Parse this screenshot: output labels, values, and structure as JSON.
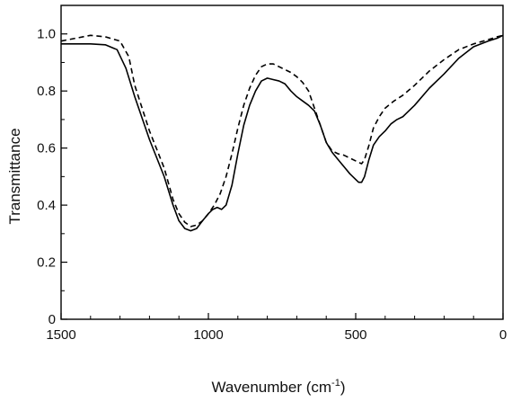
{
  "chart_data": {
    "type": "line",
    "title": "",
    "xlabel": "Wavenumber (cm",
    "xlabel_sup": "-1",
    "xlabel_tail": ")",
    "ylabel": "Transmittance",
    "xlim": [
      1500,
      0
    ],
    "ylim": [
      0,
      1.1
    ],
    "x_ticks": [
      1500,
      1000,
      500,
      0
    ],
    "y_ticks": [
      0,
      0.2,
      0.4,
      0.6,
      0.8,
      1.0
    ],
    "x_tick_labels": [
      "1500",
      "1000",
      "500",
      "0"
    ],
    "y_tick_labels": [
      "0",
      "0.2",
      "0.4",
      "0.6",
      "0.8",
      "1.0"
    ],
    "grid": false,
    "series": [
      {
        "style": "solid",
        "color": "#000000",
        "points": [
          [
            1500,
            0.965
          ],
          [
            1400,
            0.965
          ],
          [
            1350,
            0.962
          ],
          [
            1310,
            0.945
          ],
          [
            1280,
            0.88
          ],
          [
            1250,
            0.78
          ],
          [
            1200,
            0.63
          ],
          [
            1150,
            0.5
          ],
          [
            1120,
            0.4
          ],
          [
            1100,
            0.345
          ],
          [
            1080,
            0.318
          ],
          [
            1060,
            0.31
          ],
          [
            1040,
            0.318
          ],
          [
            1020,
            0.345
          ],
          [
            1000,
            0.37
          ],
          [
            985,
            0.385
          ],
          [
            970,
            0.392
          ],
          [
            955,
            0.385
          ],
          [
            940,
            0.4
          ],
          [
            920,
            0.47
          ],
          [
            900,
            0.58
          ],
          [
            880,
            0.68
          ],
          [
            860,
            0.75
          ],
          [
            840,
            0.8
          ],
          [
            820,
            0.835
          ],
          [
            800,
            0.845
          ],
          [
            780,
            0.84
          ],
          [
            760,
            0.835
          ],
          [
            740,
            0.825
          ],
          [
            720,
            0.8
          ],
          [
            700,
            0.78
          ],
          [
            680,
            0.765
          ],
          [
            660,
            0.75
          ],
          [
            640,
            0.73
          ],
          [
            620,
            0.68
          ],
          [
            600,
            0.62
          ],
          [
            580,
            0.585
          ],
          [
            560,
            0.56
          ],
          [
            540,
            0.535
          ],
          [
            520,
            0.51
          ],
          [
            500,
            0.49
          ],
          [
            490,
            0.48
          ],
          [
            480,
            0.48
          ],
          [
            470,
            0.5
          ],
          [
            455,
            0.56
          ],
          [
            440,
            0.61
          ],
          [
            420,
            0.64
          ],
          [
            400,
            0.66
          ],
          [
            380,
            0.685
          ],
          [
            360,
            0.7
          ],
          [
            340,
            0.71
          ],
          [
            300,
            0.75
          ],
          [
            250,
            0.81
          ],
          [
            200,
            0.86
          ],
          [
            150,
            0.915
          ],
          [
            100,
            0.955
          ],
          [
            50,
            0.975
          ],
          [
            20,
            0.985
          ],
          [
            0,
            0.995
          ]
        ]
      },
      {
        "style": "dashed",
        "color": "#000000",
        "points": [
          [
            1500,
            0.975
          ],
          [
            1450,
            0.985
          ],
          [
            1400,
            0.995
          ],
          [
            1350,
            0.99
          ],
          [
            1300,
            0.975
          ],
          [
            1270,
            0.92
          ],
          [
            1250,
            0.82
          ],
          [
            1200,
            0.66
          ],
          [
            1150,
            0.53
          ],
          [
            1120,
            0.42
          ],
          [
            1100,
            0.37
          ],
          [
            1080,
            0.34
          ],
          [
            1060,
            0.325
          ],
          [
            1040,
            0.33
          ],
          [
            1020,
            0.345
          ],
          [
            1000,
            0.37
          ],
          [
            980,
            0.4
          ],
          [
            960,
            0.44
          ],
          [
            940,
            0.5
          ],
          [
            920,
            0.58
          ],
          [
            900,
            0.67
          ],
          [
            880,
            0.75
          ],
          [
            860,
            0.81
          ],
          [
            840,
            0.855
          ],
          [
            820,
            0.885
          ],
          [
            800,
            0.895
          ],
          [
            780,
            0.895
          ],
          [
            760,
            0.885
          ],
          [
            740,
            0.875
          ],
          [
            720,
            0.865
          ],
          [
            700,
            0.85
          ],
          [
            680,
            0.83
          ],
          [
            660,
            0.8
          ],
          [
            640,
            0.74
          ],
          [
            620,
            0.68
          ],
          [
            600,
            0.62
          ],
          [
            580,
            0.59
          ],
          [
            560,
            0.58
          ],
          [
            540,
            0.575
          ],
          [
            520,
            0.565
          ],
          [
            500,
            0.555
          ],
          [
            490,
            0.55
          ],
          [
            480,
            0.545
          ],
          [
            470,
            0.56
          ],
          [
            455,
            0.61
          ],
          [
            440,
            0.67
          ],
          [
            420,
            0.71
          ],
          [
            400,
            0.74
          ],
          [
            370,
            0.765
          ],
          [
            340,
            0.785
          ],
          [
            300,
            0.82
          ],
          [
            250,
            0.87
          ],
          [
            200,
            0.91
          ],
          [
            150,
            0.945
          ],
          [
            100,
            0.965
          ],
          [
            50,
            0.98
          ],
          [
            20,
            0.99
          ],
          [
            0,
            0.995
          ]
        ]
      }
    ]
  }
}
